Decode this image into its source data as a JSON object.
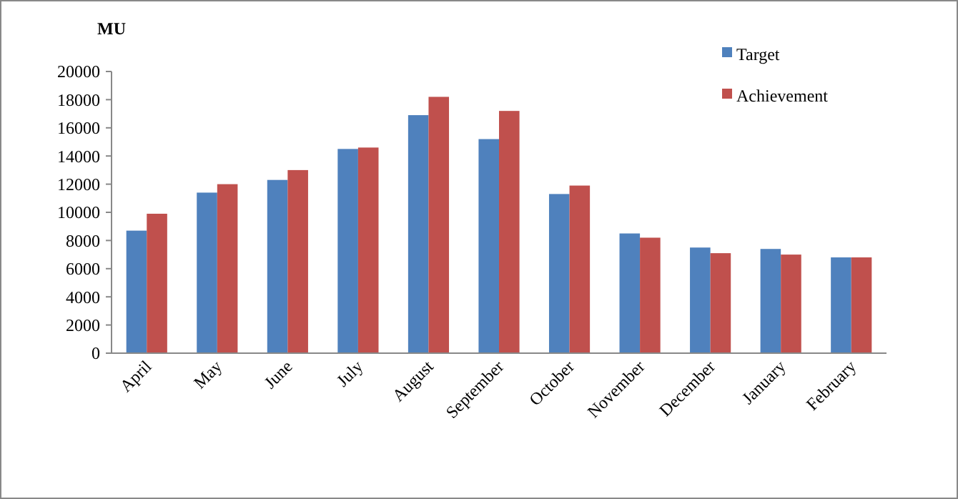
{
  "chart_data": {
    "type": "bar",
    "ylabel": "MU",
    "categories": [
      "April",
      "May",
      "June",
      "July",
      "August",
      "September",
      "October",
      "November",
      "December",
      "January",
      "February"
    ],
    "series": [
      {
        "name": "Target",
        "color": "#4f81bd",
        "values": [
          8700,
          11400,
          12300,
          14500,
          16900,
          15200,
          11300,
          8500,
          7500,
          7400,
          6800
        ]
      },
      {
        "name": "Achievement",
        "color": "#c0504d",
        "values": [
          9900,
          12000,
          13000,
          14600,
          18200,
          17200,
          11900,
          8200,
          7100,
          7000,
          6800
        ]
      }
    ],
    "ylim": [
      0,
      20000
    ],
    "yticks": [
      0,
      2000,
      4000,
      6000,
      8000,
      10000,
      12000,
      14000,
      16000,
      18000,
      20000
    ],
    "grid": false,
    "legend": "top right"
  }
}
